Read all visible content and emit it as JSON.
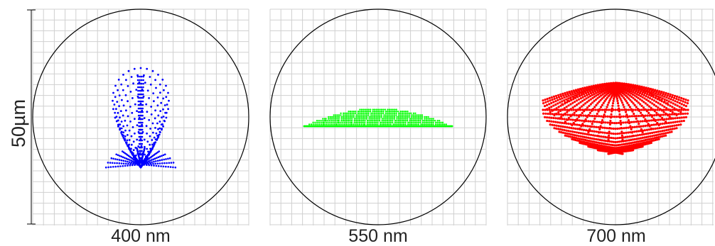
{
  "scale_label": "50µm",
  "panels": [
    {
      "id": "panel-400",
      "wavelength_label": "400 nm",
      "color": "#0000ff",
      "shape": "teardrop"
    },
    {
      "id": "panel-550",
      "wavelength_label": "550 nm",
      "color": "#00ff00",
      "shape": "flat-lens"
    },
    {
      "id": "panel-700",
      "wavelength_label": "700 nm",
      "color": "#ff0000",
      "shape": "fan"
    }
  ],
  "grid": {
    "visible": true,
    "color": "#d0d0d0"
  },
  "circle_color": "#000000"
}
